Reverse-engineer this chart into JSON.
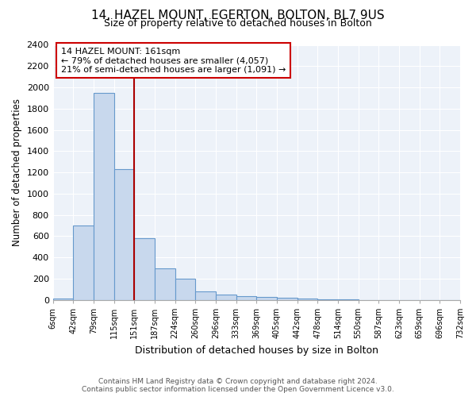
{
  "title": "14, HAZEL MOUNT, EGERTON, BOLTON, BL7 9US",
  "subtitle": "Size of property relative to detached houses in Bolton",
  "xlabel": "Distribution of detached houses by size in Bolton",
  "ylabel": "Number of detached properties",
  "bar_values": [
    15,
    700,
    1950,
    1230,
    580,
    300,
    200,
    80,
    50,
    35,
    25,
    20,
    10,
    5,
    5,
    0,
    0,
    0,
    0,
    0
  ],
  "bin_labels": [
    "6sqm",
    "42sqm",
    "79sqm",
    "115sqm",
    "151sqm",
    "187sqm",
    "224sqm",
    "260sqm",
    "296sqm",
    "333sqm",
    "369sqm",
    "405sqm",
    "442sqm",
    "478sqm",
    "514sqm",
    "550sqm",
    "587sqm",
    "623sqm",
    "659sqm",
    "696sqm",
    "732sqm"
  ],
  "bar_color": "#c8d8ed",
  "bar_edge_color": "#6699cc",
  "ylim": [
    0,
    2400
  ],
  "yticks": [
    0,
    200,
    400,
    600,
    800,
    1000,
    1200,
    1400,
    1600,
    1800,
    2000,
    2200,
    2400
  ],
  "red_line_after_bar": 4,
  "annotation_text_line1": "14 HAZEL MOUNT: 161sqm",
  "annotation_text_line2": "← 79% of detached houses are smaller (4,057)",
  "annotation_text_line3": "21% of semi-detached houses are larger (1,091) →",
  "annotation_box_color": "#ffffff",
  "annotation_box_edge_color": "#cc0000",
  "red_line_color": "#aa0000",
  "footer_line1": "Contains HM Land Registry data © Crown copyright and database right 2024.",
  "footer_line2": "Contains public sector information licensed under the Open Government Licence v3.0.",
  "background_color": "#ffffff",
  "plot_bg_color": "#edf2f9",
  "grid_color": "#ffffff"
}
